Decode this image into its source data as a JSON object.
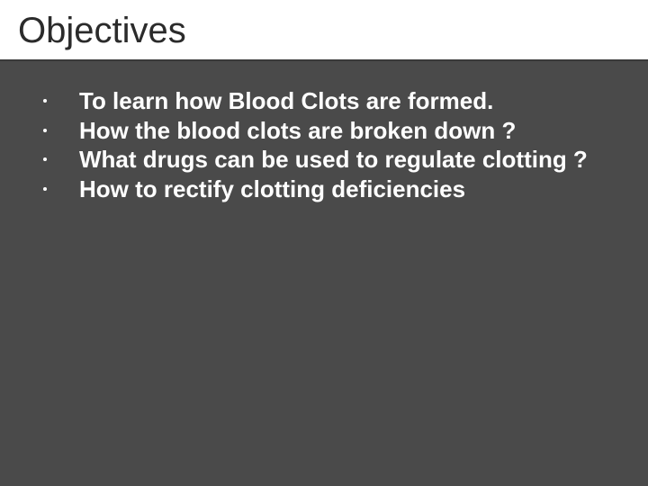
{
  "slide": {
    "title": "Objectives",
    "bullets": [
      "To learn how Blood Clots are formed.",
      "How the blood clots are broken down ?",
      "What drugs can be used to regulate clotting ?",
      "How to rectify clotting deficiencies"
    ],
    "background_color": "#4a4a4a",
    "title_bg": "#ffffff",
    "title_color": "#2b2b2b",
    "text_color": "#ffffff",
    "title_fontsize": 40,
    "body_fontsize": 26,
    "body_fontweight": 700
  }
}
